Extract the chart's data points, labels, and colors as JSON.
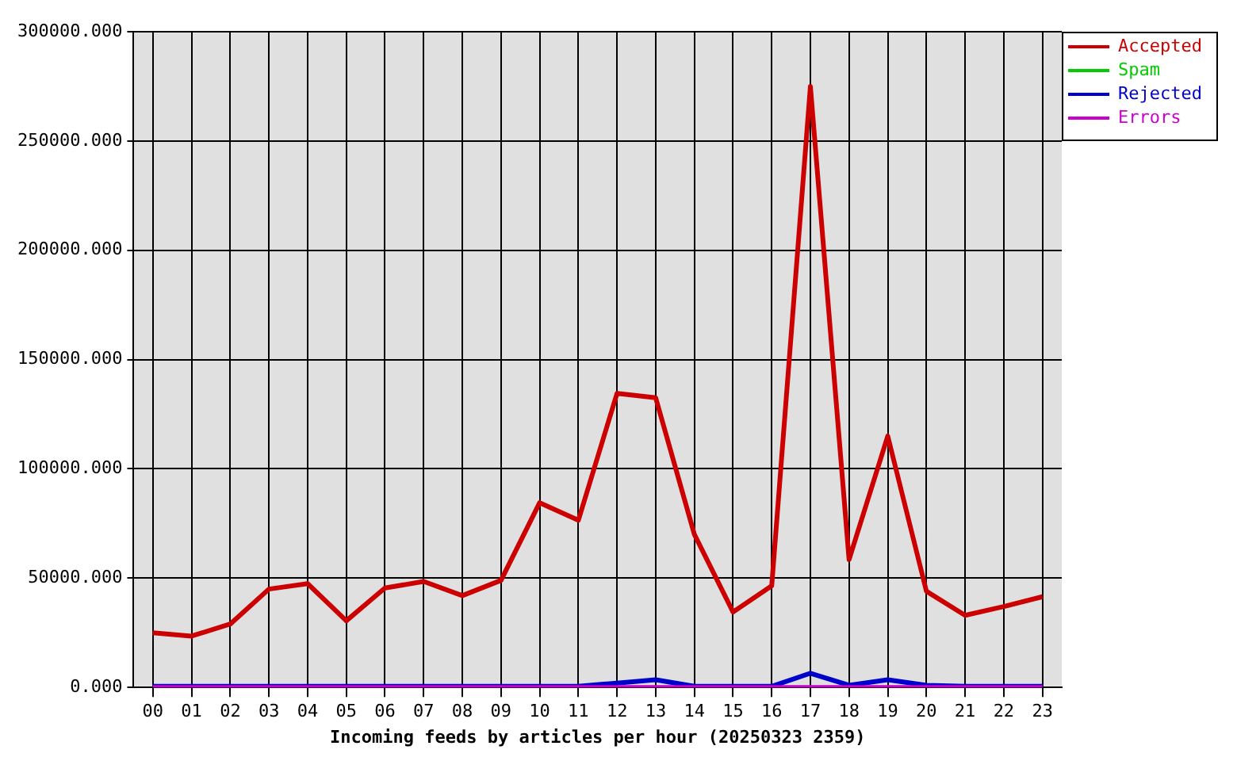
{
  "chart_data": {
    "type": "line",
    "xlabel": "Incoming feeds by articles per hour (20250323 2359)",
    "categories": [
      "00",
      "01",
      "02",
      "03",
      "04",
      "05",
      "06",
      "07",
      "08",
      "09",
      "10",
      "11",
      "12",
      "13",
      "14",
      "15",
      "16",
      "17",
      "18",
      "19",
      "20",
      "21",
      "22",
      "23"
    ],
    "series": [
      {
        "name": "Accepted",
        "color": "#cc0000",
        "values": [
          25000,
          23500,
          29000,
          45000,
          47500,
          30500,
          45500,
          48500,
          42000,
          49000,
          84500,
          76500,
          134500,
          132500,
          70000,
          34500,
          46500,
          275000,
          58500,
          115000,
          44000,
          33000,
          37000,
          41500
        ]
      },
      {
        "name": "Spam",
        "color": "#00cc00",
        "values": [
          null,
          null,
          null,
          null,
          null,
          null,
          null,
          null,
          null,
          null,
          null,
          null,
          null,
          null,
          null,
          null,
          null,
          null,
          null,
          null,
          null,
          null,
          null,
          null
        ]
      },
      {
        "name": "Rejected",
        "color": "#0000cc",
        "values": [
          500,
          500,
          500,
          500,
          500,
          500,
          500,
          500,
          500,
          500,
          500,
          500,
          2000,
          3500,
          500,
          500,
          500,
          6500,
          1000,
          3500,
          1000,
          500,
          500,
          500
        ]
      },
      {
        "name": "Errors",
        "color": "#cc00cc",
        "values": [
          0,
          0,
          0,
          0,
          0,
          0,
          0,
          0,
          0,
          0,
          0,
          0,
          0,
          0,
          0,
          0,
          0,
          0,
          0,
          0,
          0,
          0,
          0,
          0
        ]
      }
    ],
    "ylim": [
      0,
      300000
    ],
    "yticks": [
      {
        "value": 0,
        "label": "0.000"
      },
      {
        "value": 50000,
        "label": "50000.000"
      },
      {
        "value": 100000,
        "label": "100000.000"
      },
      {
        "value": 150000,
        "label": "150000.000"
      },
      {
        "value": 200000,
        "label": "200000.000"
      },
      {
        "value": 250000,
        "label": "250000.000"
      },
      {
        "value": 300000,
        "label": "300000.000"
      }
    ],
    "grid": true,
    "legend": "top right"
  }
}
